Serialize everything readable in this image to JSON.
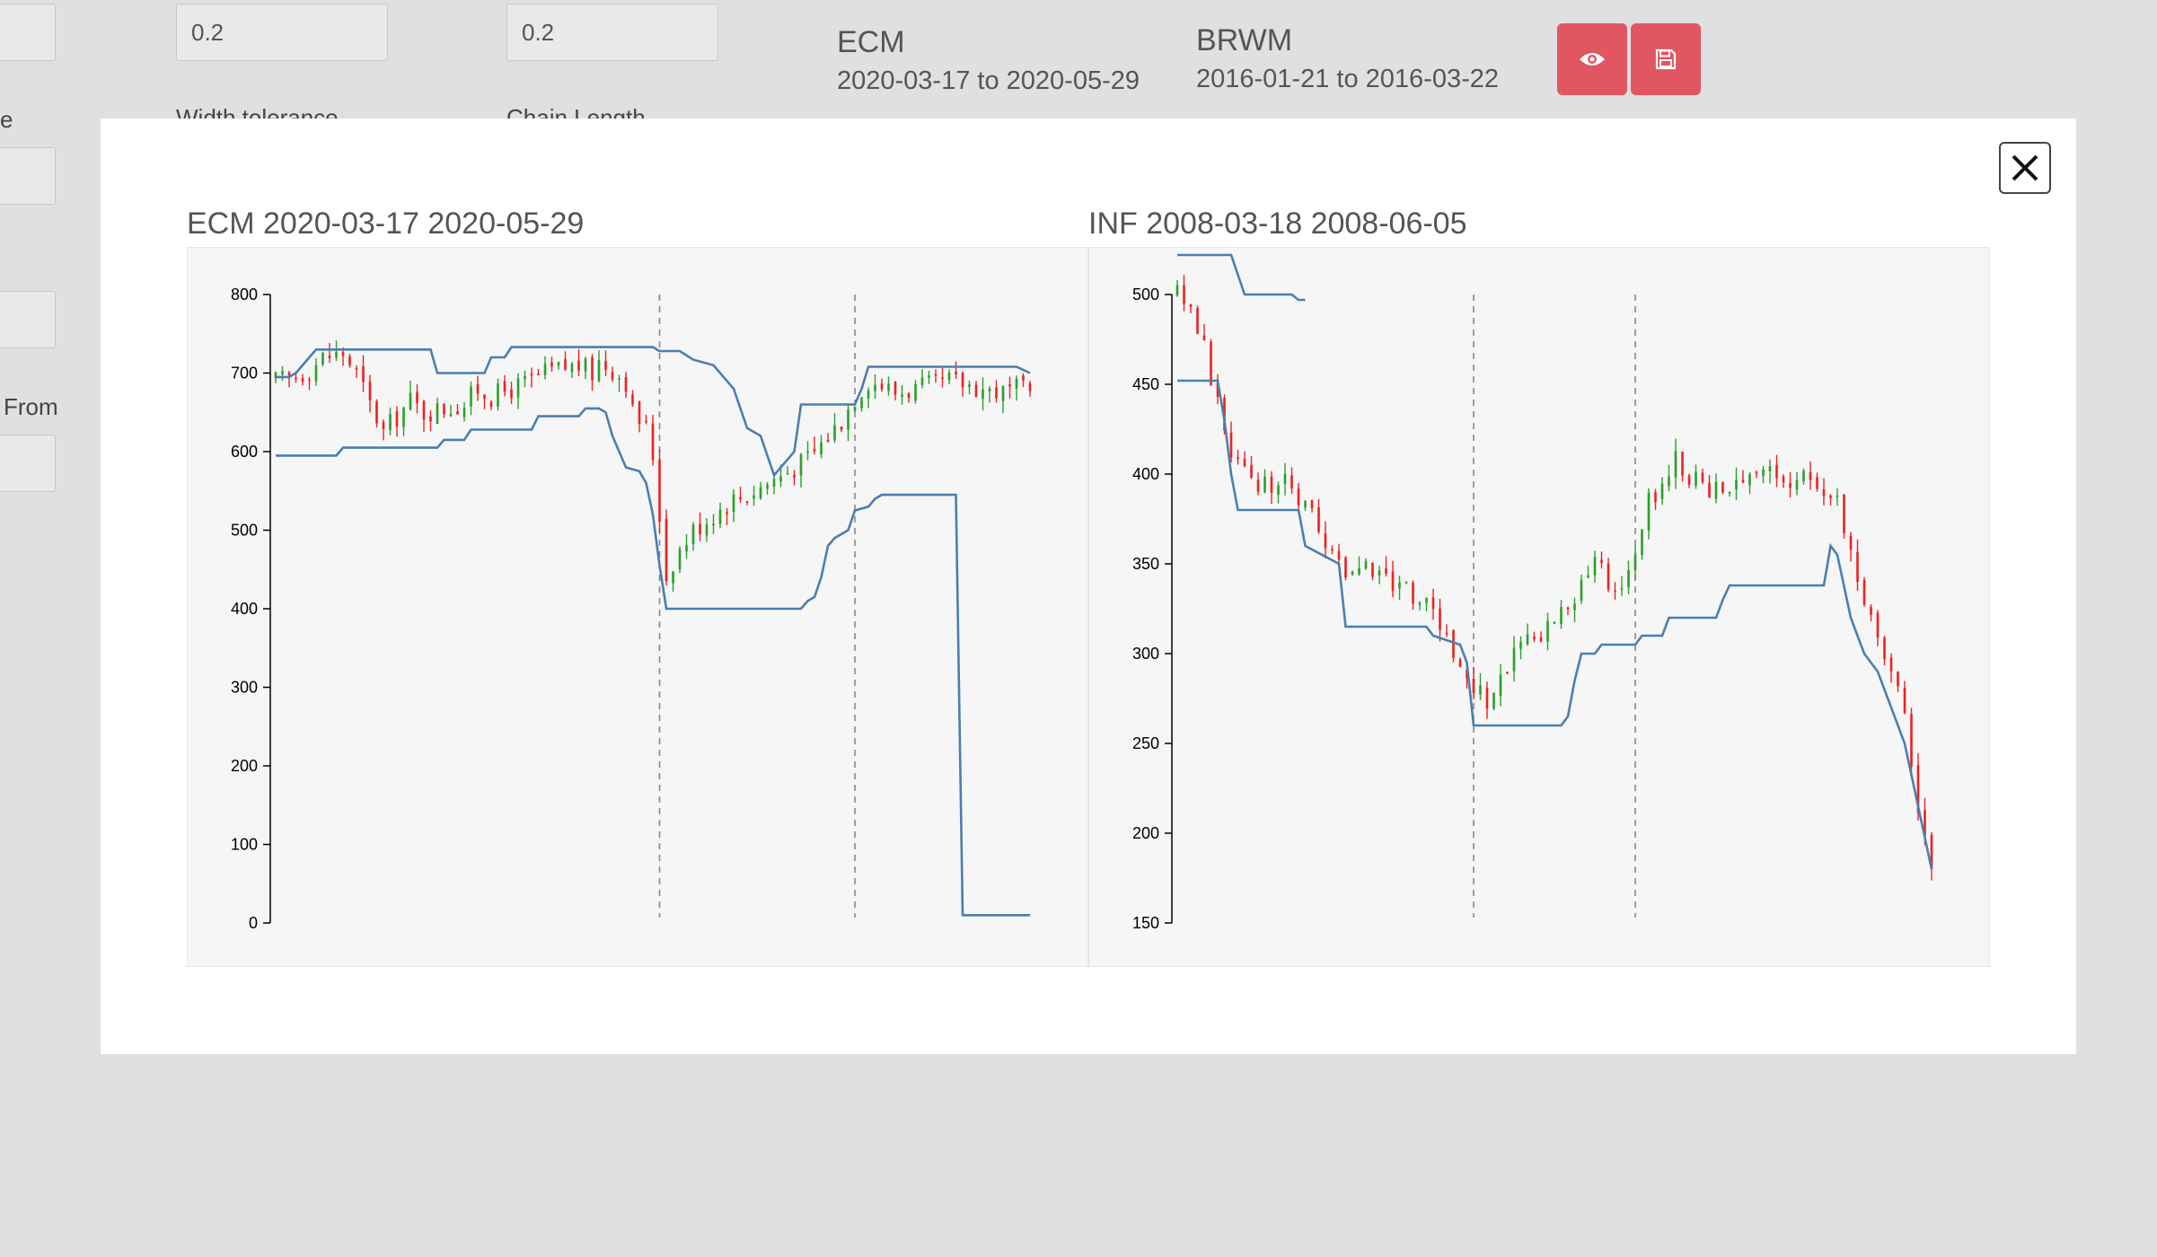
{
  "background": {
    "inputs": [
      {
        "label": "Width tolerance",
        "value": "0.2"
      },
      {
        "label": "Chain Length",
        "value": "0.2"
      }
    ],
    "left_labels": [
      "e",
      "From"
    ],
    "summaries": [
      {
        "symbol": "ECM",
        "range": "2020-03-17 to 2020-05-29"
      },
      {
        "symbol": "BRWM",
        "range": "2016-01-21 to 2016-03-22"
      }
    ],
    "buttons": {
      "view_icon": "eye-icon",
      "save_icon": "floppy-disk-icon"
    },
    "accent_color": "#e05661"
  },
  "modal": {
    "close_icon": "close-icon",
    "charts": [
      {
        "title": "ECM 2020-03-17 2020-05-29"
      },
      {
        "title": "INF 2008-03-18 2008-06-05"
      }
    ]
  },
  "chart_data": [
    {
      "type": "candlestick",
      "title": "ECM 2020-03-17 2020-05-29",
      "ylim": [
        0,
        800
      ],
      "yticks": [
        0,
        100,
        200,
        300,
        400,
        500,
        600,
        700,
        800
      ],
      "grid": false,
      "n_bars": 113,
      "vlines_at_bar": [
        57,
        86
      ],
      "line_color": "#4a7fb0",
      "up_color": "#2ca02c",
      "down_color": "#ee2222",
      "price_anchors": [
        [
          0,
          690
        ],
        [
          3,
          695
        ],
        [
          5,
          705
        ],
        [
          7,
          720
        ],
        [
          10,
          725
        ],
        [
          12,
          700
        ],
        [
          14,
          660
        ],
        [
          16,
          625
        ],
        [
          18,
          645
        ],
        [
          20,
          665
        ],
        [
          22,
          650
        ],
        [
          25,
          655
        ],
        [
          28,
          660
        ],
        [
          30,
          680
        ],
        [
          32,
          670
        ],
        [
          35,
          680
        ],
        [
          38,
          690
        ],
        [
          40,
          700
        ],
        [
          42,
          705
        ],
        [
          45,
          710
        ],
        [
          47,
          700
        ],
        [
          48,
          715
        ],
        [
          50,
          705
        ],
        [
          52,
          690
        ],
        [
          53,
          650
        ],
        [
          55,
          630
        ],
        [
          56,
          595
        ],
        [
          57,
          520
        ],
        [
          58,
          440
        ],
        [
          59,
          460
        ],
        [
          60,
          475
        ],
        [
          62,
          500
        ],
        [
          65,
          520
        ],
        [
          68,
          540
        ],
        [
          70,
          545
        ],
        [
          72,
          555
        ],
        [
          74,
          565
        ],
        [
          76,
          575
        ],
        [
          78,
          585
        ],
        [
          80,
          600
        ],
        [
          82,
          620
        ],
        [
          84,
          640
        ],
        [
          85,
          655
        ],
        [
          86,
          670
        ],
        [
          88,
          690
        ],
        [
          90,
          685
        ],
        [
          92,
          675
        ],
        [
          95,
          680
        ],
        [
          98,
          685
        ],
        [
          100,
          690
        ],
        [
          103,
          685
        ],
        [
          105,
          680
        ],
        [
          108,
          675
        ],
        [
          110,
          680
        ],
        [
          112,
          675
        ]
      ],
      "upper_line": [
        [
          0,
          695
        ],
        [
          2,
          695
        ],
        [
          3,
          700
        ],
        [
          5,
          720
        ],
        [
          6,
          730
        ],
        [
          23,
          730
        ],
        [
          24,
          700
        ],
        [
          31,
          700
        ],
        [
          32,
          720
        ],
        [
          34,
          720
        ],
        [
          35,
          733
        ],
        [
          56,
          733
        ],
        [
          57,
          728
        ],
        [
          60,
          728
        ],
        [
          62,
          717
        ],
        [
          65,
          710
        ],
        [
          68,
          680
        ],
        [
          70,
          630
        ],
        [
          72,
          620
        ],
        [
          74,
          570
        ],
        [
          76,
          590
        ],
        [
          77,
          600
        ],
        [
          78,
          660
        ],
        [
          86,
          660
        ],
        [
          87,
          680
        ],
        [
          88,
          708
        ],
        [
          110,
          708
        ],
        [
          112,
          700
        ]
      ],
      "lower_line": [
        [
          0,
          595
        ],
        [
          9,
          595
        ],
        [
          10,
          605
        ],
        [
          24,
          605
        ],
        [
          25,
          615
        ],
        [
          28,
          615
        ],
        [
          29,
          628
        ],
        [
          38,
          628
        ],
        [
          39,
          645
        ],
        [
          45,
          645
        ],
        [
          46,
          655
        ],
        [
          48,
          655
        ],
        [
          49,
          650
        ],
        [
          50,
          620
        ],
        [
          51,
          600
        ],
        [
          52,
          580
        ],
        [
          54,
          575
        ],
        [
          55,
          560
        ],
        [
          56,
          520
        ],
        [
          57,
          455
        ],
        [
          58,
          400
        ],
        [
          78,
          400
        ],
        [
          79,
          410
        ],
        [
          80,
          415
        ],
        [
          81,
          440
        ],
        [
          82,
          480
        ],
        [
          83,
          490
        ],
        [
          85,
          500
        ],
        [
          86,
          525
        ],
        [
          88,
          530
        ],
        [
          89,
          540
        ],
        [
          90,
          545
        ],
        [
          101,
          545
        ],
        [
          102,
          10
        ],
        [
          112,
          10
        ]
      ]
    },
    {
      "type": "candlestick",
      "title": "INF 2008-03-18 2008-06-05",
      "ylim": [
        150,
        500
      ],
      "yticks": [
        150,
        200,
        250,
        300,
        350,
        400,
        450,
        500
      ],
      "grid": false,
      "n_bars": 113,
      "vlines_at_bar": [
        44,
        68
      ],
      "line_color": "#4a7fb0",
      "up_color": "#2ca02c",
      "down_color": "#ee2222",
      "price_anchors": [
        [
          0,
          500
        ],
        [
          2,
          490
        ],
        [
          4,
          470
        ],
        [
          6,
          440
        ],
        [
          8,
          410
        ],
        [
          10,
          400
        ],
        [
          12,
          395
        ],
        [
          14,
          395
        ],
        [
          16,
          395
        ],
        [
          18,
          385
        ],
        [
          20,
          375
        ],
        [
          22,
          360
        ],
        [
          24,
          350
        ],
        [
          26,
          345
        ],
        [
          28,
          350
        ],
        [
          30,
          345
        ],
        [
          32,
          340
        ],
        [
          34,
          335
        ],
        [
          36,
          330
        ],
        [
          38,
          320
        ],
        [
          40,
          310
        ],
        [
          42,
          295
        ],
        [
          44,
          280
        ],
        [
          46,
          275
        ],
        [
          48,
          285
        ],
        [
          50,
          300
        ],
        [
          52,
          310
        ],
        [
          54,
          312
        ],
        [
          56,
          318
        ],
        [
          58,
          325
        ],
        [
          60,
          340
        ],
        [
          62,
          350
        ],
        [
          64,
          340
        ],
        [
          66,
          335
        ],
        [
          68,
          360
        ],
        [
          70,
          385
        ],
        [
          72,
          395
        ],
        [
          74,
          410
        ],
        [
          76,
          400
        ],
        [
          78,
          395
        ],
        [
          80,
          390
        ],
        [
          82,
          385
        ],
        [
          84,
          400
        ],
        [
          86,
          405
        ],
        [
          88,
          400
        ],
        [
          90,
          395
        ],
        [
          92,
          395
        ],
        [
          94,
          400
        ],
        [
          96,
          392
        ],
        [
          98,
          385
        ],
        [
          100,
          360
        ],
        [
          102,
          330
        ],
        [
          104,
          305
        ],
        [
          106,
          290
        ],
        [
          108,
          270
        ],
        [
          110,
          215
        ],
        [
          112,
          185
        ]
      ],
      "upper_line": [
        [
          0,
          522
        ],
        [
          8,
          522
        ],
        [
          10,
          500
        ],
        [
          17,
          500
        ],
        [
          18,
          497
        ],
        [
          17,
          497
        ],
        [
          19,
          497
        ],
        [
          17,
          497
        ],
        [
          17,
          497
        ],
        [
          18,
          495
        ],
        [
          17,
          495
        ],
        [
          17,
          495
        ],
        [
          18,
          496
        ],
        [
          17,
          496
        ],
        [
          17,
          496
        ],
        [
          17,
          497
        ],
        [
          19,
          497
        ],
        [
          18,
          497
        ],
        [
          19,
          497
        ],
        [
          17,
          497
        ],
        [
          18,
          497
        ],
        [
          17,
          497
        ],
        [
          17,
          497
        ],
        [
          17,
          497
        ],
        [
          17,
          497
        ],
        [
          17,
          497
        ],
        [
          17,
          497
        ],
        [
          17,
          497
        ]
      ],
      "lower_line": [
        [
          0,
          452
        ],
        [
          6,
          452
        ],
        [
          7,
          430
        ],
        [
          8,
          400
        ],
        [
          9,
          380
        ],
        [
          18,
          380
        ],
        [
          19,
          360
        ],
        [
          24,
          350
        ],
        [
          25,
          315
        ],
        [
          37,
          315
        ],
        [
          38,
          310
        ],
        [
          42,
          305
        ],
        [
          43,
          295
        ],
        [
          44,
          260
        ],
        [
          57,
          260
        ],
        [
          58,
          265
        ],
        [
          59,
          285
        ],
        [
          60,
          300
        ],
        [
          62,
          300
        ],
        [
          63,
          305
        ],
        [
          68,
          305
        ],
        [
          69,
          310
        ],
        [
          72,
          310
        ],
        [
          73,
          320
        ],
        [
          80,
          320
        ],
        [
          81,
          330
        ],
        [
          82,
          338
        ],
        [
          96,
          338
        ],
        [
          97,
          360
        ],
        [
          98,
          355
        ],
        [
          100,
          320
        ],
        [
          102,
          300
        ],
        [
          104,
          290
        ],
        [
          106,
          270
        ],
        [
          108,
          250
        ],
        [
          110,
          215
        ],
        [
          112,
          180
        ]
      ]
    }
  ]
}
